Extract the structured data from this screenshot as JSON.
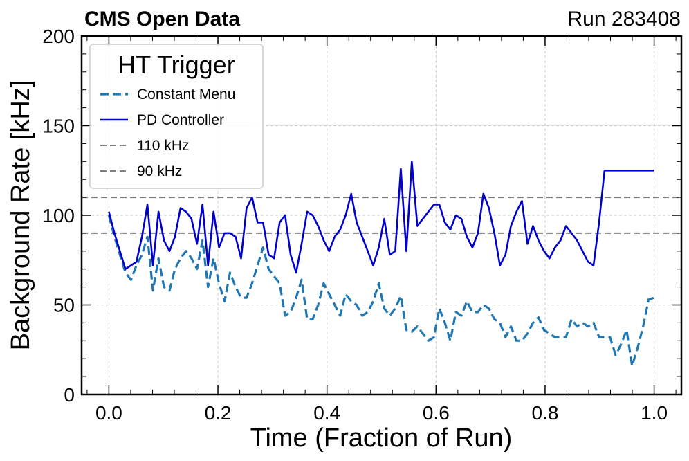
{
  "header": {
    "left": "CMS Open Data",
    "right": "Run 283408"
  },
  "chart_data": {
    "type": "line",
    "title": "",
    "xlabel": "Time (Fraction of Run)",
    "ylabel": "Background Rate [kHz]",
    "xlim": [
      -0.05,
      1.05
    ],
    "ylim": [
      0,
      200
    ],
    "xticks": [
      0.0,
      0.2,
      0.4,
      0.6,
      0.8,
      1.0
    ],
    "xtick_labels": [
      "0.0",
      "0.2",
      "0.4",
      "0.6",
      "0.8",
      "1.0"
    ],
    "yticks": [
      0,
      50,
      100,
      150,
      200
    ],
    "ytick_labels": [
      "0",
      "50",
      "100",
      "150",
      "200"
    ],
    "grid": true,
    "legend": {
      "title": "HT Trigger",
      "position": "top-left",
      "entries": [
        "Constant Menu",
        "PD Controller",
        "110 kHz",
        "90 kHz"
      ]
    },
    "hlines": [
      {
        "name": "110 kHz",
        "y": 110,
        "color": "#808080",
        "style": "dashed"
      },
      {
        "name": "90 kHz",
        "y": 90,
        "color": "#808080",
        "style": "dashed"
      }
    ],
    "series": [
      {
        "name": "Constant Menu",
        "color": "#1f77b4",
        "style": "dashed",
        "x": [
          0.0,
          0.0101,
          0.0202,
          0.0303,
          0.0404,
          0.0505,
          0.0606,
          0.0707,
          0.0808,
          0.0909,
          0.101,
          0.1111,
          0.1212,
          0.1313,
          0.1414,
          0.1515,
          0.1616,
          0.1717,
          0.1818,
          0.1919,
          0.202,
          0.2121,
          0.2222,
          0.2323,
          0.2424,
          0.2525,
          0.2626,
          0.2727,
          0.2828,
          0.2929,
          0.303,
          0.3131,
          0.3232,
          0.3333,
          0.3434,
          0.3535,
          0.3636,
          0.3737,
          0.3838,
          0.3939,
          0.404,
          0.4141,
          0.4242,
          0.4343,
          0.4444,
          0.4545,
          0.4646,
          0.4747,
          0.4848,
          0.4949,
          0.5051,
          0.5152,
          0.5253,
          0.5354,
          0.5455,
          0.5556,
          0.5657,
          0.5758,
          0.5859,
          0.596,
          0.6061,
          0.6162,
          0.6263,
          0.6364,
          0.6465,
          0.6566,
          0.6667,
          0.6768,
          0.6869,
          0.697,
          0.7071,
          0.7172,
          0.7273,
          0.7374,
          0.7475,
          0.7576,
          0.7677,
          0.7778,
          0.7879,
          0.798,
          0.8081,
          0.8182,
          0.8283,
          0.8384,
          0.8485,
          0.8586,
          0.8687,
          0.8788,
          0.8889,
          0.899,
          0.9091,
          0.9192,
          0.9293,
          0.9394,
          0.9495,
          0.9596,
          0.9697,
          0.9798,
          0.9899,
          1.0
        ],
        "y": [
          100,
          88,
          78,
          68,
          64,
          72,
          78,
          88,
          58,
          76,
          60,
          58,
          70,
          76,
          80,
          76,
          70,
          86,
          60,
          76,
          62,
          52,
          68,
          60,
          54,
          54,
          62,
          72,
          82,
          70,
          66,
          62,
          44,
          46,
          54,
          64,
          42,
          42,
          50,
          62,
          56,
          50,
          44,
          56,
          52,
          50,
          44,
          46,
          52,
          62,
          48,
          44,
          48,
          55,
          36,
          35,
          38,
          34,
          30,
          32,
          48,
          40,
          30,
          46,
          44,
          52,
          46,
          46,
          50,
          48,
          42,
          40,
          32,
          38,
          30,
          30,
          34,
          40,
          43,
          36,
          34,
          32,
          32,
          32,
          42,
          38,
          40,
          38,
          40,
          32,
          32,
          32,
          22,
          28,
          36,
          16,
          26,
          38,
          53,
          54
        ]
      },
      {
        "name": "PD Controller",
        "color": "#0000cc",
        "style": "solid",
        "x": [
          0.0,
          0.0101,
          0.0202,
          0.0303,
          0.0404,
          0.0505,
          0.0606,
          0.0707,
          0.0808,
          0.0909,
          0.101,
          0.1111,
          0.1212,
          0.1313,
          0.1414,
          0.1515,
          0.1616,
          0.1717,
          0.1818,
          0.1919,
          0.202,
          0.2121,
          0.2222,
          0.2323,
          0.2424,
          0.2525,
          0.2626,
          0.2727,
          0.2828,
          0.2929,
          0.303,
          0.3131,
          0.3232,
          0.3333,
          0.3434,
          0.3535,
          0.3636,
          0.3737,
          0.3838,
          0.3939,
          0.404,
          0.4141,
          0.4242,
          0.4343,
          0.4444,
          0.4545,
          0.4646,
          0.4747,
          0.4848,
          0.4949,
          0.5051,
          0.5152,
          0.5253,
          0.5354,
          0.5455,
          0.5556,
          0.5657,
          0.5758,
          0.5859,
          0.596,
          0.6061,
          0.6162,
          0.6263,
          0.6364,
          0.6465,
          0.6566,
          0.6667,
          0.6768,
          0.6869,
          0.697,
          0.7071,
          0.7172,
          0.7273,
          0.7374,
          0.7475,
          0.7576,
          0.7677,
          0.7778,
          0.7879,
          0.798,
          0.8081,
          0.8182,
          0.8283,
          0.8384,
          0.8485,
          0.8586,
          0.8687,
          0.8788,
          0.8889,
          0.899,
          0.9091,
          0.9192,
          0.9293,
          0.9394,
          0.9495,
          0.9596,
          0.9697,
          0.9798,
          0.9899,
          1.0
        ],
        "y": [
          102,
          90,
          80,
          70,
          72,
          74,
          88,
          106,
          72,
          102,
          86,
          80,
          88,
          104,
          102,
          98,
          84,
          106,
          72,
          102,
          82,
          90,
          90,
          88,
          76,
          104,
          110,
          96,
          96,
          78,
          76,
          96,
          100,
          78,
          68,
          84,
          102,
          100,
          94,
          86,
          80,
          88,
          92,
          100,
          112,
          96,
          88,
          80,
          72,
          82,
          98,
          78,
          80,
          126,
          80,
          130,
          94,
          98,
          102,
          106,
          106,
          96,
          92,
          100,
          98,
          88,
          82,
          90,
          112,
          104,
          90,
          72,
          78,
          94,
          102,
          108,
          84,
          94,
          86,
          80,
          76,
          82,
          86,
          94,
          90,
          86,
          80,
          74,
          72,
          96,
          125,
          125,
          125,
          125,
          125,
          125,
          125,
          125,
          125,
          125
        ]
      }
    ]
  }
}
